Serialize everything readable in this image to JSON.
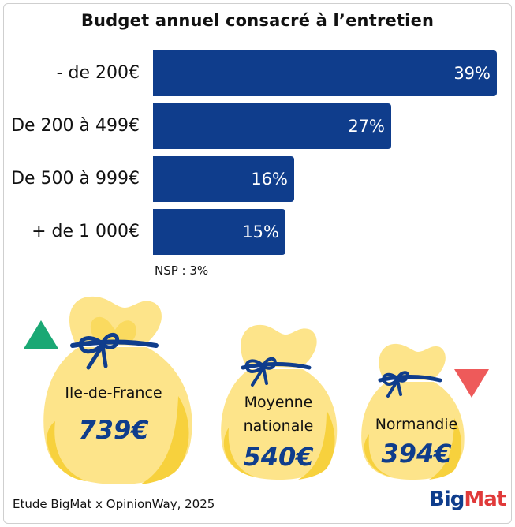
{
  "chart_data": {
    "type": "bar",
    "title": "Budget annuel consacré à l’entretien",
    "categories": [
      "- de 200€",
      "De 200 à 499€",
      "De 500 à 999€",
      "+ de 1 000€"
    ],
    "values": [
      39,
      27,
      16,
      15
    ],
    "value_labels": [
      "39%",
      "27%",
      "16%",
      "15%"
    ],
    "xlim": [
      0,
      39
    ],
    "orientation": "horizontal",
    "note": "NSP : 3%"
  },
  "regions": [
    {
      "label": "Ile-de-France",
      "value": "739€",
      "trend": "up",
      "trend_color": "#1aa874"
    },
    {
      "label": "Moyenne\nnationale",
      "label_line1": "Moyenne",
      "label_line2": "nationale",
      "value": "540€"
    },
    {
      "label": "Normandie",
      "value": "394€",
      "trend": "down",
      "trend_color": "#ee5a5a"
    }
  ],
  "colors": {
    "bar": "#0f3d8c",
    "bag": "#fde48a",
    "bag_shadow": "#f7d13d",
    "tie": "#0f3d8c"
  },
  "footer": {
    "source": "Etude BigMat x OpinionWay, 2025",
    "logo_part1": "Big",
    "logo_part2": "Mat"
  }
}
